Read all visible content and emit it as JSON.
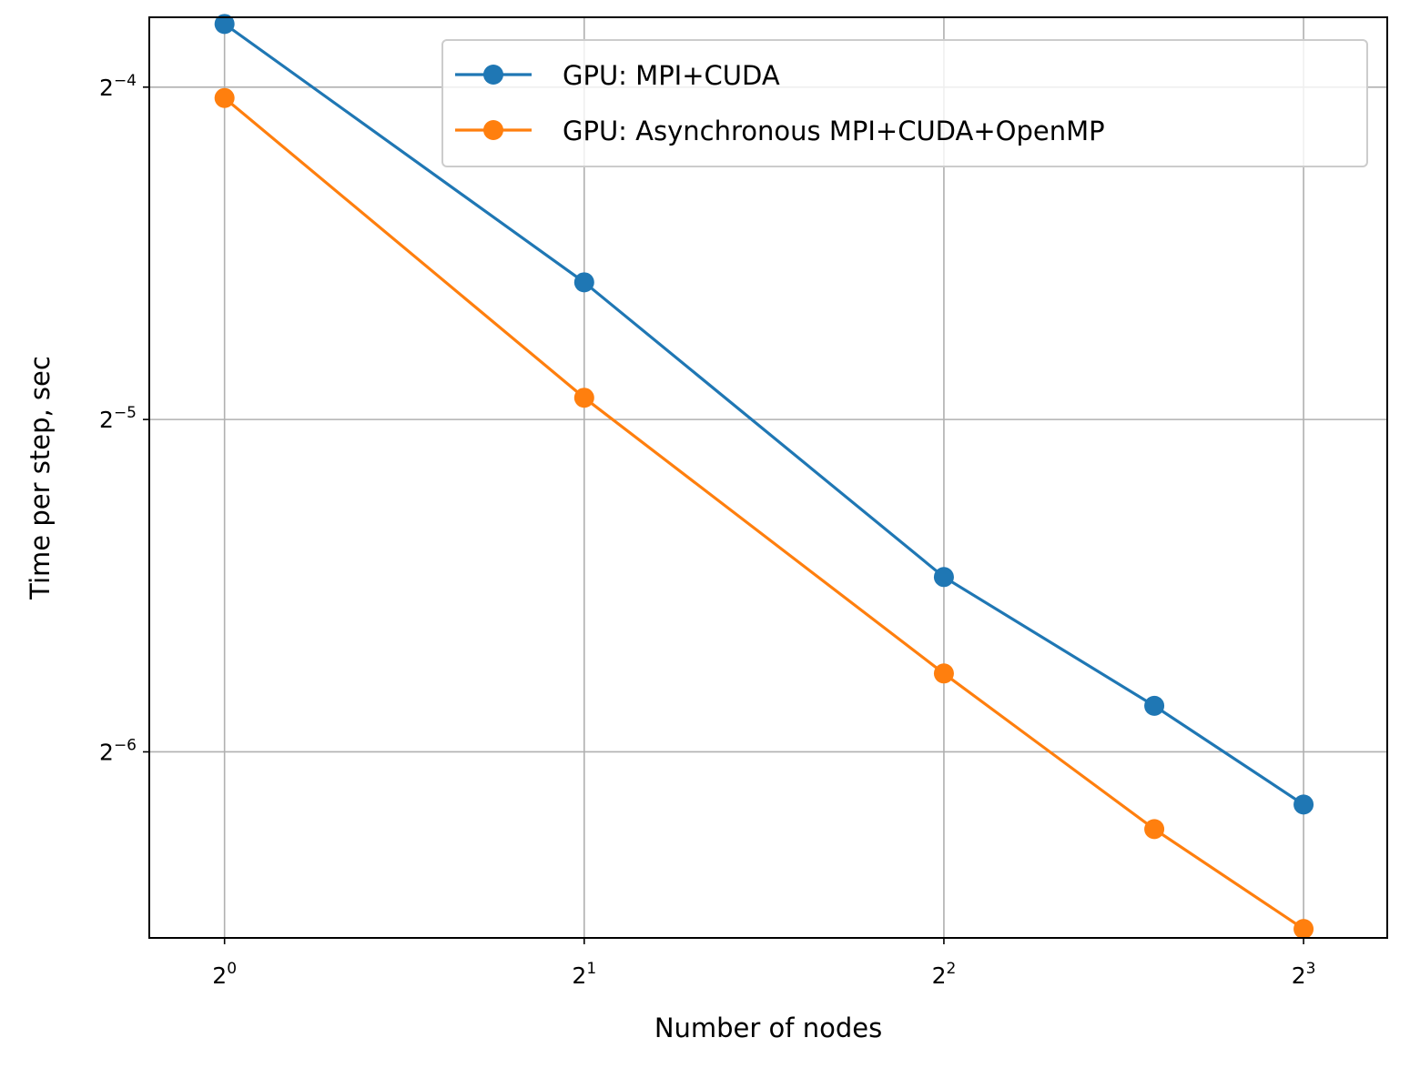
{
  "chart_data": {
    "type": "line",
    "title": "",
    "xlabel": "Number of nodes",
    "ylabel": "Time per step, sec",
    "xscale": "log2",
    "yscale": "log2",
    "xlim": [
      0.865,
      9.4
    ],
    "ylim": [
      0.0106,
      0.0723
    ],
    "grid": true,
    "legend_position": "top-right",
    "x_ticks": [
      {
        "base": "2",
        "exp": "0",
        "value": 1
      },
      {
        "base": "2",
        "exp": "1",
        "value": 2
      },
      {
        "base": "2",
        "exp": "2",
        "value": 4
      },
      {
        "base": "2",
        "exp": "3",
        "value": 8
      }
    ],
    "y_ticks": [
      {
        "base": "2",
        "exp": "−4",
        "value": 0.0625
      },
      {
        "base": "2",
        "exp": "−5",
        "value": 0.03125
      },
      {
        "base": "2",
        "exp": "−6",
        "value": 0.015625
      }
    ],
    "x": [
      1,
      2,
      4,
      6,
      8
    ],
    "series": [
      {
        "name": "GPU: MPI+CUDA",
        "color": "#1f77b4",
        "values": [
          0.0713,
          0.0416,
          0.0225,
          0.0172,
          0.014
        ]
      },
      {
        "name": "GPU: Asynchronous MPI+CUDA+OpenMP",
        "color": "#ff7f0e",
        "values": [
          0.0611,
          0.0327,
          0.0184,
          0.0133,
          0.0108
        ]
      }
    ]
  }
}
